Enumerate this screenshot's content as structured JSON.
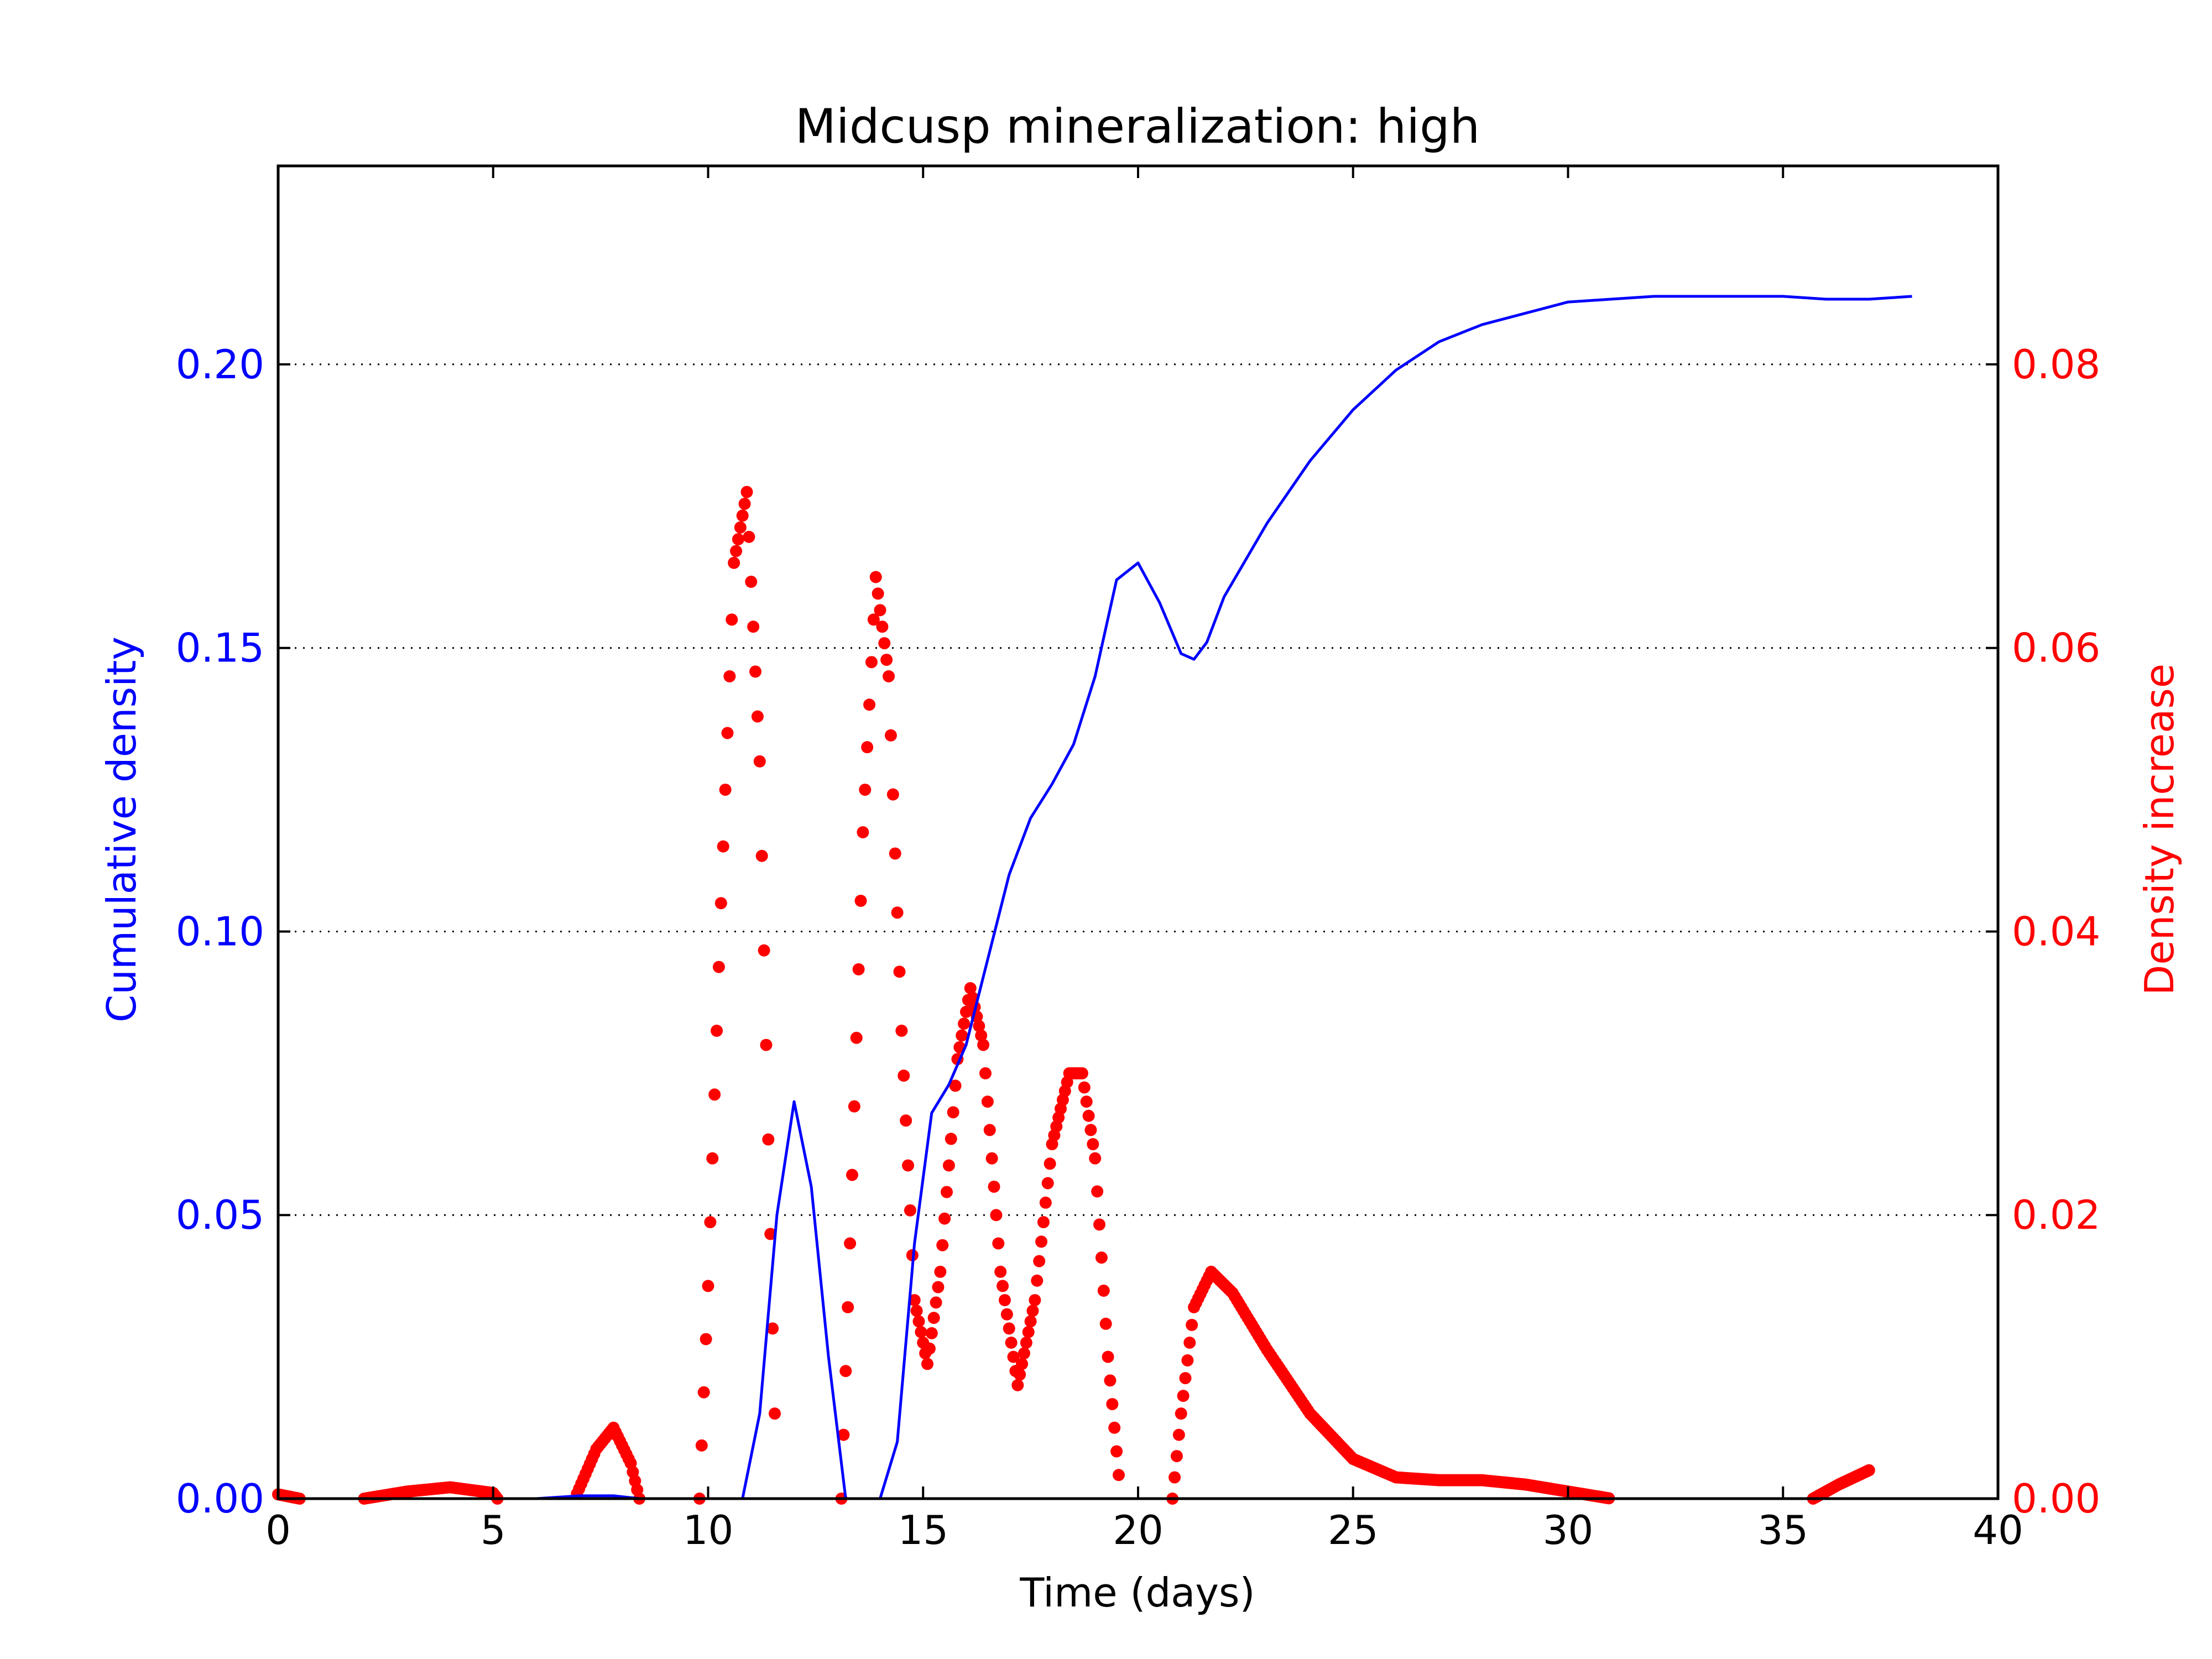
{
  "chart_data": {
    "type": "line",
    "title": "Midcusp mineralization: high",
    "xlabel": "Time (days)",
    "ylabel_left": "Cumulative density",
    "ylabel_right": "Density increase",
    "xlim": [
      0,
      40
    ],
    "ylim_left": [
      0,
      0.235
    ],
    "ylim_right": [
      0,
      0.094
    ],
    "x_ticks": [
      "0",
      "5",
      "10",
      "15",
      "20",
      "25",
      "30",
      "35",
      "40"
    ],
    "x_tick_values": [
      0,
      5,
      10,
      15,
      20,
      25,
      30,
      35,
      40
    ],
    "left_ticks": [
      "0.00",
      "0.05",
      "0.10",
      "0.15",
      "0.20"
    ],
    "left_tick_values": [
      0,
      0.05,
      0.1,
      0.15,
      0.2
    ],
    "right_ticks": [
      "0.00",
      "0.02",
      "0.04",
      "0.06",
      "0.08"
    ],
    "right_tick_values": [
      0,
      0.02,
      0.04,
      0.06,
      0.08
    ],
    "grid": "horizontal dotted at right-axis ticks",
    "colors": {
      "left_axis": "#0000ff",
      "right_axis": "#ff0000",
      "cumulative": "#0000ff",
      "increase": "#ff0000"
    },
    "series": [
      {
        "axis": "left",
        "style": "solid line",
        "x": [
          0,
          1,
          2,
          3,
          4,
          5,
          6,
          7,
          7.8,
          8.4,
          9,
          10,
          10.8,
          11.2,
          11.6,
          12.0,
          12.4,
          12.8,
          13.2,
          13.6,
          14.0,
          14.4,
          14.8,
          15.2,
          15.6,
          16.0,
          16.4,
          17.0,
          17.5,
          18.0,
          18.5,
          19.0,
          19.5,
          20.0,
          20.5,
          21.0,
          21.3,
          21.6,
          22.0,
          23.0,
          24.0,
          25.0,
          26.0,
          27.0,
          28.0,
          29.0,
          30.0,
          31.0,
          32.0,
          33.0,
          34.0,
          35.0,
          36.0,
          37.0,
          38.0
        ],
        "y": [
          0,
          0,
          0,
          0,
          0,
          0,
          0,
          0.0005,
          0.0005,
          0,
          0,
          0,
          0,
          0.015,
          0.05,
          0.07,
          0.055,
          0.025,
          0,
          0,
          0,
          0.01,
          0.045,
          0.068,
          0.073,
          0.08,
          0.092,
          0.11,
          0.12,
          0.126,
          0.133,
          0.145,
          0.162,
          0.165,
          0.158,
          0.149,
          0.148,
          0.151,
          0.159,
          0.172,
          0.183,
          0.192,
          0.199,
          0.204,
          0.207,
          0.209,
          0.211,
          0.2115,
          0.212,
          0.212,
          0.212,
          0.212,
          0.2115,
          0.2115,
          0.212
        ]
      },
      {
        "axis": "right",
        "style": "dotted (dense markers)",
        "x": [
          0,
          0.5,
          1,
          2,
          3,
          4,
          5,
          5.1,
          6.9,
          7.4,
          7.8,
          8.2,
          8.4,
          9.8,
          10.0,
          10.3,
          10.6,
          10.9,
          11.2,
          11.5,
          11.6,
          13.1,
          13.3,
          13.6,
          13.9,
          14.2,
          14.5,
          14.8,
          15.1,
          15.4,
          15.8,
          16.1,
          16.4,
          16.8,
          17.2,
          17.6,
          18.0,
          18.4,
          18.7,
          19.0,
          19.3,
          19.6,
          20.8,
          21.0,
          21.3,
          21.7,
          22.2,
          23,
          24,
          25,
          26,
          27,
          28,
          29,
          30,
          31,
          32,
          32.8,
          35.7,
          36.3,
          37.0
        ],
        "y": [
          0.0003,
          0,
          0,
          0,
          0.0005,
          0.0008,
          0.0004,
          0,
          0,
          0.0035,
          0.005,
          0.0025,
          0,
          0,
          0.015,
          0.042,
          0.066,
          0.071,
          0.052,
          0.012,
          0,
          0,
          0.018,
          0.047,
          0.065,
          0.058,
          0.033,
          0.014,
          0.0095,
          0.016,
          0.031,
          0.036,
          0.032,
          0.016,
          0.008,
          0.014,
          0.025,
          0.03,
          0.03,
          0.024,
          0.01,
          0,
          0,
          0.006,
          0.0135,
          0.016,
          0.0145,
          0.0105,
          0.006,
          0.0028,
          0.0015,
          0.0013,
          0.0013,
          0.001,
          0.0005,
          0,
          0,
          0,
          0,
          0.001,
          0.002
        ]
      }
    ]
  }
}
